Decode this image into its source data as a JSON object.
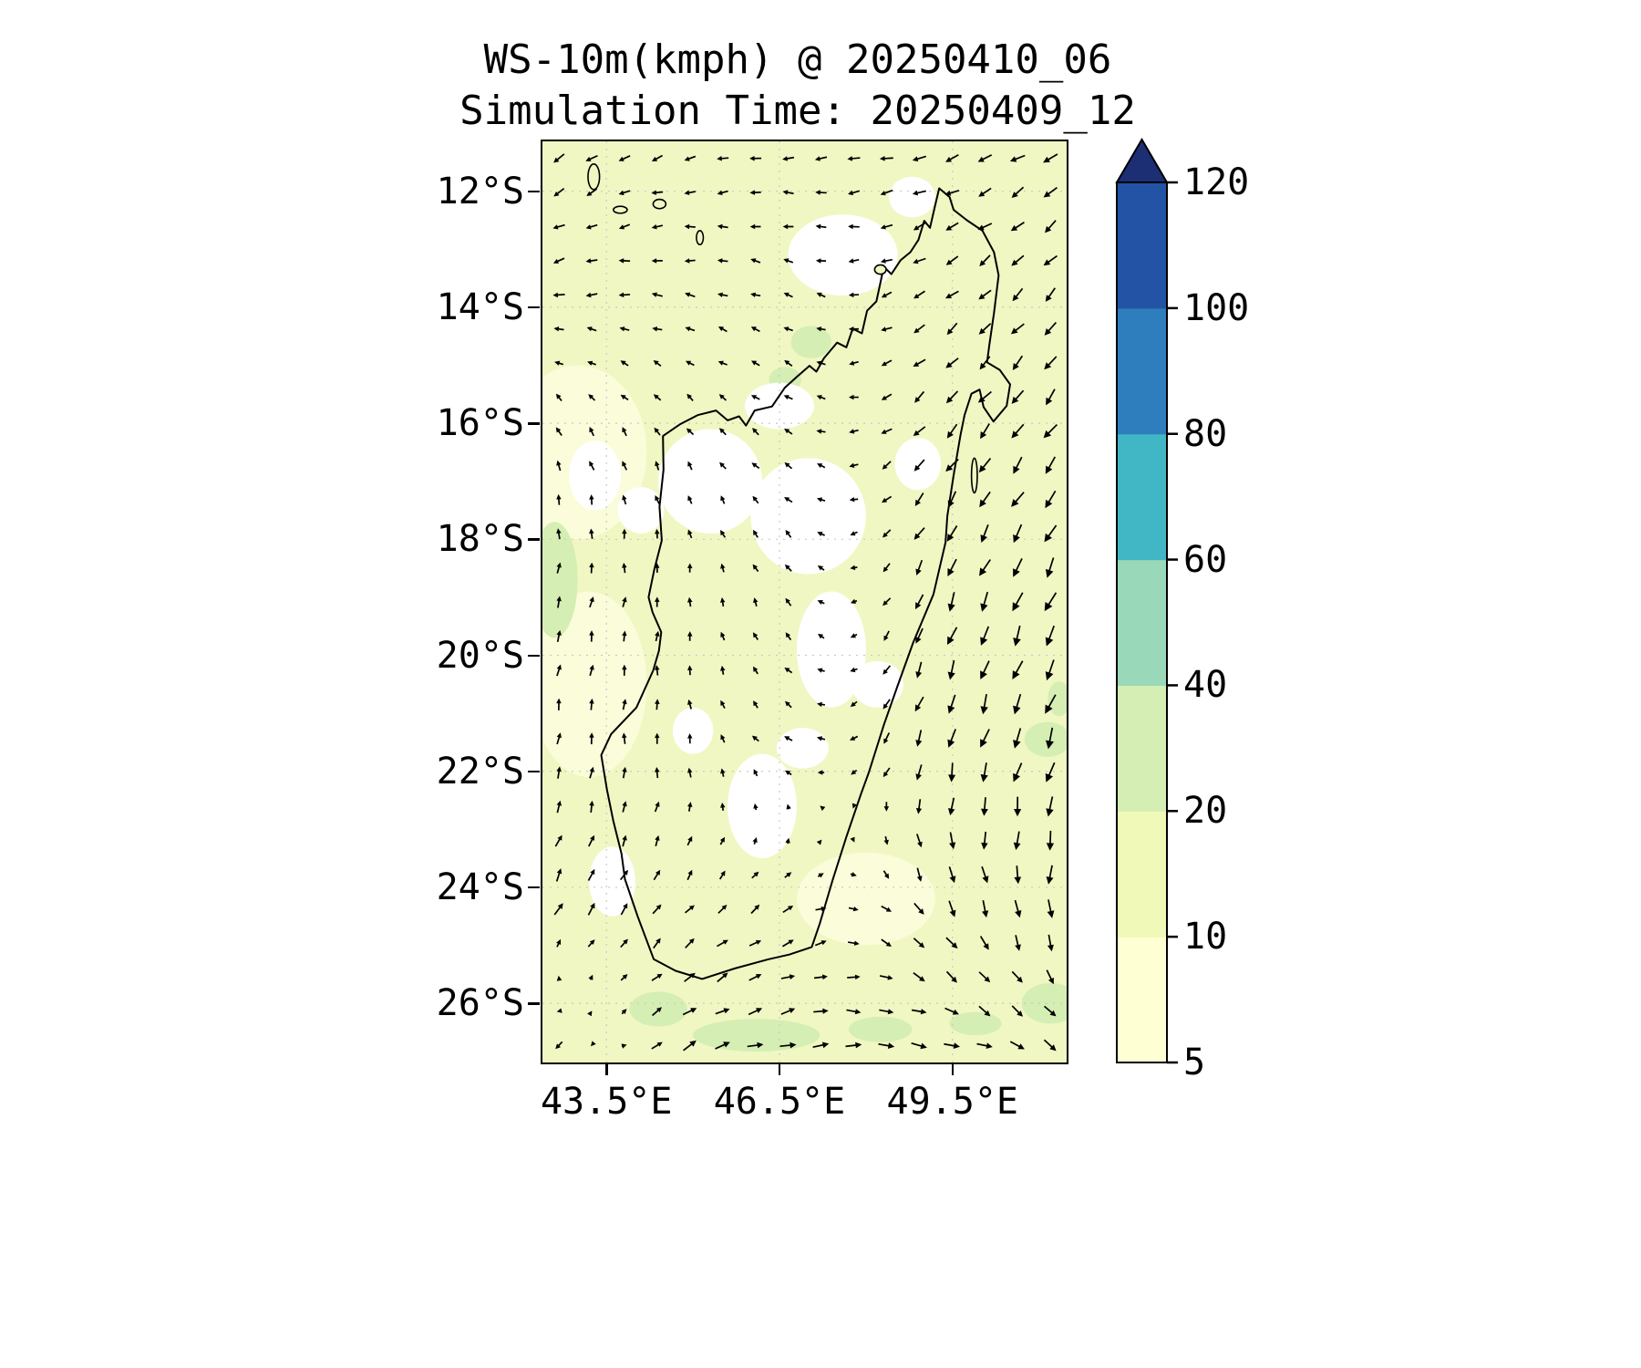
{
  "figure": {
    "title": "WS-10m(kmph) @ 20250410_06",
    "subtitle": "Simulation Time: 20250409_12"
  },
  "chart_data": {
    "type": "heatmap",
    "subtype": "wind-speed-filled-contour-with-quiver",
    "region": "Madagascar",
    "variable": "WS-10m",
    "units": "kmph",
    "valid_time": "20250410_06",
    "simulation_time": "20250409_12",
    "x_axis": {
      "tick_values": [
        43.5,
        46.5,
        49.5
      ],
      "tick_labels": [
        "43.5°E",
        "46.5°E",
        "49.5°E"
      ],
      "range": [
        42.39,
        51.48
      ]
    },
    "y_axis": {
      "tick_values": [
        12,
        14,
        16,
        18,
        20,
        22,
        24,
        26
      ],
      "tick_labels": [
        "12°S",
        "14°S",
        "16°S",
        "18°S",
        "20°S",
        "22°S",
        "24°S",
        "26°S"
      ],
      "range": [
        11.14,
        27.02
      ]
    },
    "colorbar": {
      "levels": [
        5,
        10,
        20,
        40,
        60,
        80,
        100,
        120
      ],
      "colors": [
        "#ffffd4",
        "#f0f9b8",
        "#d5eeb3",
        "#99d8b9",
        "#41b6c4",
        "#2e7ebd",
        "#2353a4"
      ],
      "extend_color": "#1c2f75",
      "extend": "max"
    },
    "base_color": "#f0f7c2",
    "pale_color": "#fbfcd9",
    "green_color": "#d5eeb3",
    "white_color": "#ffffff",
    "coastline": [
      [
        49.27,
        11.95
      ],
      [
        49.45,
        12.1
      ],
      [
        49.52,
        12.32
      ],
      [
        49.75,
        12.5
      ],
      [
        50.02,
        12.68
      ],
      [
        50.22,
        13.05
      ],
      [
        50.3,
        13.45
      ],
      [
        50.22,
        14.1
      ],
      [
        50.14,
        14.65
      ],
      [
        50.1,
        14.95
      ],
      [
        50.32,
        15.08
      ],
      [
        50.5,
        15.33
      ],
      [
        50.44,
        15.7
      ],
      [
        50.21,
        15.97
      ],
      [
        50.04,
        15.72
      ],
      [
        49.97,
        15.42
      ],
      [
        49.83,
        15.49
      ],
      [
        49.71,
        15.86
      ],
      [
        49.64,
        16.2
      ],
      [
        49.52,
        16.9
      ],
      [
        49.41,
        17.6
      ],
      [
        49.38,
        18.05
      ],
      [
        49.17,
        18.95
      ],
      [
        48.82,
        19.78
      ],
      [
        48.55,
        20.52
      ],
      [
        48.31,
        21.2
      ],
      [
        48.05,
        22.02
      ],
      [
        47.91,
        22.4
      ],
      [
        47.66,
        23.13
      ],
      [
        47.42,
        23.88
      ],
      [
        47.2,
        24.62
      ],
      [
        47.06,
        25.03
      ],
      [
        46.67,
        25.16
      ],
      [
        46.31,
        25.24
      ],
      [
        45.72,
        25.4
      ],
      [
        45.16,
        25.58
      ],
      [
        44.7,
        25.44
      ],
      [
        44.32,
        25.24
      ],
      [
        44.04,
        24.5
      ],
      [
        43.82,
        23.86
      ],
      [
        43.76,
        23.42
      ],
      [
        43.62,
        22.86
      ],
      [
        43.51,
        22.32
      ],
      [
        43.41,
        21.72
      ],
      [
        43.58,
        21.36
      ],
      [
        44.02,
        20.9
      ],
      [
        44.31,
        20.26
      ],
      [
        44.41,
        19.92
      ],
      [
        44.45,
        19.6
      ],
      [
        44.3,
        19.26
      ],
      [
        44.23,
        19.0
      ],
      [
        44.33,
        18.52
      ],
      [
        44.46,
        18.02
      ],
      [
        44.42,
        17.44
      ],
      [
        44.49,
        16.8
      ],
      [
        44.48,
        16.22
      ],
      [
        44.77,
        16.02
      ],
      [
        45.08,
        15.86
      ],
      [
        45.4,
        15.78
      ],
      [
        45.6,
        15.95
      ],
      [
        45.8,
        15.88
      ],
      [
        45.92,
        16.04
      ],
      [
        46.07,
        15.78
      ],
      [
        46.37,
        15.71
      ],
      [
        46.59,
        15.39
      ],
      [
        46.8,
        15.2
      ],
      [
        47.02,
        15.01
      ],
      [
        47.14,
        15.11
      ],
      [
        47.27,
        14.88
      ],
      [
        47.5,
        14.61
      ],
      [
        47.66,
        14.69
      ],
      [
        47.77,
        14.37
      ],
      [
        47.93,
        14.45
      ],
      [
        48.02,
        14.06
      ],
      [
        48.18,
        13.9
      ],
      [
        48.31,
        13.3
      ],
      [
        48.44,
        13.43
      ],
      [
        48.6,
        13.19
      ],
      [
        48.77,
        13.05
      ],
      [
        48.91,
        12.84
      ],
      [
        49.01,
        12.51
      ],
      [
        49.11,
        12.63
      ],
      [
        49.2,
        12.24
      ],
      [
        49.27,
        11.95
      ]
    ],
    "islands": [
      [
        43.28,
        11.75,
        0.1,
        0.22
      ],
      [
        43.74,
        12.32,
        0.12,
        0.06
      ],
      [
        44.42,
        12.22,
        0.11,
        0.08
      ],
      [
        45.12,
        12.8,
        0.06,
        0.12
      ],
      [
        48.25,
        13.35,
        0.1,
        0.08
      ],
      [
        49.88,
        16.9,
        0.05,
        0.3
      ]
    ],
    "patches": {
      "pale": [
        [
          43.0,
          16.5,
          1.2,
          1.5
        ],
        [
          43.2,
          20.5,
          1.0,
          1.6
        ],
        [
          48.0,
          24.2,
          1.2,
          0.8
        ]
      ],
      "green": [
        [
          47.05,
          14.6,
          0.35,
          0.28
        ],
        [
          46.6,
          15.25,
          0.28,
          0.22
        ],
        [
          51.15,
          21.45,
          0.4,
          0.3
        ],
        [
          51.35,
          20.75,
          0.2,
          0.3
        ],
        [
          46.1,
          26.55,
          1.1,
          0.28
        ],
        [
          48.25,
          26.45,
          0.55,
          0.22
        ],
        [
          44.4,
          26.1,
          0.5,
          0.3
        ],
        [
          49.9,
          26.35,
          0.45,
          0.2
        ],
        [
          51.2,
          26.0,
          0.5,
          0.35
        ],
        [
          42.6,
          18.7,
          0.4,
          1.0
        ]
      ],
      "white": [
        [
          47.6,
          13.1,
          0.95,
          0.7
        ],
        [
          46.5,
          15.7,
          0.6,
          0.4
        ],
        [
          45.3,
          17.0,
          0.9,
          0.9
        ],
        [
          47.0,
          17.6,
          1.0,
          1.0
        ],
        [
          47.4,
          19.9,
          0.6,
          1.0
        ],
        [
          46.2,
          22.6,
          0.6,
          0.9
        ],
        [
          43.3,
          16.9,
          0.45,
          0.6
        ],
        [
          44.1,
          17.5,
          0.4,
          0.4
        ],
        [
          48.2,
          20.5,
          0.45,
          0.4
        ],
        [
          43.6,
          23.9,
          0.4,
          0.6
        ],
        [
          48.8,
          12.1,
          0.4,
          0.35
        ],
        [
          48.9,
          16.7,
          0.4,
          0.45
        ],
        [
          45.0,
          21.3,
          0.35,
          0.4
        ],
        [
          46.9,
          21.6,
          0.45,
          0.35
        ]
      ]
    },
    "wind_field": {
      "cols": 5,
      "rows": 7,
      "angles_deg": [
        225,
        200,
        185,
        195,
        215,
        190,
        170,
        155,
        215,
        230,
        110,
        120,
        150,
        230,
        235,
        75,
        85,
        130,
        250,
        245,
        80,
        95,
        160,
        255,
        250,
        60,
        50,
        30,
        300,
        270,
        220,
        30,
        5,
        355,
        330
      ],
      "speed_kmph": [
        12,
        10,
        10,
        12,
        14,
        10,
        9,
        8,
        12,
        14,
        9,
        8,
        8,
        14,
        16,
        10,
        8,
        8,
        16,
        18,
        10,
        9,
        8,
        16,
        18,
        12,
        10,
        10,
        14,
        16,
        14,
        14,
        14,
        14,
        14
      ],
      "grid_nx": 16,
      "grid_ny": 27
    }
  },
  "style_colors": {
    "grid": "#c9c9c9",
    "coast": "#000000",
    "arrow": "#000000"
  }
}
